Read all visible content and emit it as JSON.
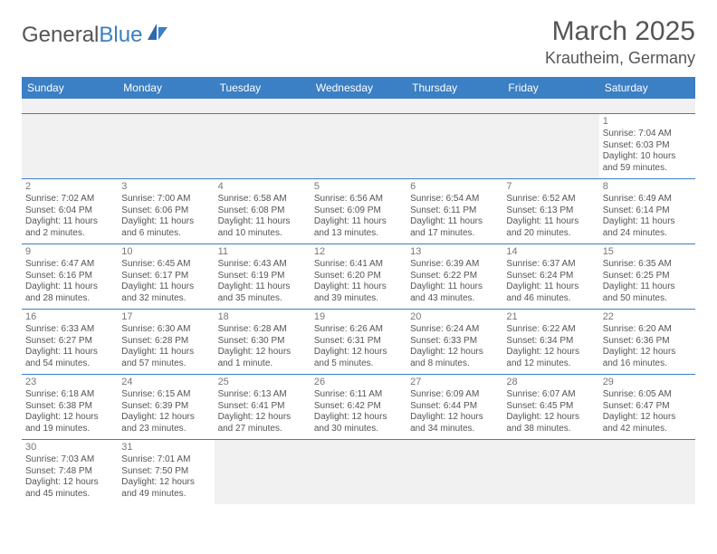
{
  "logo": {
    "text1": "General",
    "text2": "Blue"
  },
  "title": "March 2025",
  "location": "Krautheim, Germany",
  "colors": {
    "header_bg": "#3b7fc4",
    "header_text": "#ffffff",
    "row_border": "#3b7fc4",
    "blank_bg": "#f1f1f1",
    "body_text": "#555555"
  },
  "day_headers": [
    "Sunday",
    "Monday",
    "Tuesday",
    "Wednesday",
    "Thursday",
    "Friday",
    "Saturday"
  ],
  "weeks": [
    [
      null,
      null,
      null,
      null,
      null,
      null,
      {
        "n": "1",
        "sr": "Sunrise: 7:04 AM",
        "ss": "Sunset: 6:03 PM",
        "dl": "Daylight: 10 hours and 59 minutes."
      }
    ],
    [
      {
        "n": "2",
        "sr": "Sunrise: 7:02 AM",
        "ss": "Sunset: 6:04 PM",
        "dl": "Daylight: 11 hours and 2 minutes."
      },
      {
        "n": "3",
        "sr": "Sunrise: 7:00 AM",
        "ss": "Sunset: 6:06 PM",
        "dl": "Daylight: 11 hours and 6 minutes."
      },
      {
        "n": "4",
        "sr": "Sunrise: 6:58 AM",
        "ss": "Sunset: 6:08 PM",
        "dl": "Daylight: 11 hours and 10 minutes."
      },
      {
        "n": "5",
        "sr": "Sunrise: 6:56 AM",
        "ss": "Sunset: 6:09 PM",
        "dl": "Daylight: 11 hours and 13 minutes."
      },
      {
        "n": "6",
        "sr": "Sunrise: 6:54 AM",
        "ss": "Sunset: 6:11 PM",
        "dl": "Daylight: 11 hours and 17 minutes."
      },
      {
        "n": "7",
        "sr": "Sunrise: 6:52 AM",
        "ss": "Sunset: 6:13 PM",
        "dl": "Daylight: 11 hours and 20 minutes."
      },
      {
        "n": "8",
        "sr": "Sunrise: 6:49 AM",
        "ss": "Sunset: 6:14 PM",
        "dl": "Daylight: 11 hours and 24 minutes."
      }
    ],
    [
      {
        "n": "9",
        "sr": "Sunrise: 6:47 AM",
        "ss": "Sunset: 6:16 PM",
        "dl": "Daylight: 11 hours and 28 minutes."
      },
      {
        "n": "10",
        "sr": "Sunrise: 6:45 AM",
        "ss": "Sunset: 6:17 PM",
        "dl": "Daylight: 11 hours and 32 minutes."
      },
      {
        "n": "11",
        "sr": "Sunrise: 6:43 AM",
        "ss": "Sunset: 6:19 PM",
        "dl": "Daylight: 11 hours and 35 minutes."
      },
      {
        "n": "12",
        "sr": "Sunrise: 6:41 AM",
        "ss": "Sunset: 6:20 PM",
        "dl": "Daylight: 11 hours and 39 minutes."
      },
      {
        "n": "13",
        "sr": "Sunrise: 6:39 AM",
        "ss": "Sunset: 6:22 PM",
        "dl": "Daylight: 11 hours and 43 minutes."
      },
      {
        "n": "14",
        "sr": "Sunrise: 6:37 AM",
        "ss": "Sunset: 6:24 PM",
        "dl": "Daylight: 11 hours and 46 minutes."
      },
      {
        "n": "15",
        "sr": "Sunrise: 6:35 AM",
        "ss": "Sunset: 6:25 PM",
        "dl": "Daylight: 11 hours and 50 minutes."
      }
    ],
    [
      {
        "n": "16",
        "sr": "Sunrise: 6:33 AM",
        "ss": "Sunset: 6:27 PM",
        "dl": "Daylight: 11 hours and 54 minutes."
      },
      {
        "n": "17",
        "sr": "Sunrise: 6:30 AM",
        "ss": "Sunset: 6:28 PM",
        "dl": "Daylight: 11 hours and 57 minutes."
      },
      {
        "n": "18",
        "sr": "Sunrise: 6:28 AM",
        "ss": "Sunset: 6:30 PM",
        "dl": "Daylight: 12 hours and 1 minute."
      },
      {
        "n": "19",
        "sr": "Sunrise: 6:26 AM",
        "ss": "Sunset: 6:31 PM",
        "dl": "Daylight: 12 hours and 5 minutes."
      },
      {
        "n": "20",
        "sr": "Sunrise: 6:24 AM",
        "ss": "Sunset: 6:33 PM",
        "dl": "Daylight: 12 hours and 8 minutes."
      },
      {
        "n": "21",
        "sr": "Sunrise: 6:22 AM",
        "ss": "Sunset: 6:34 PM",
        "dl": "Daylight: 12 hours and 12 minutes."
      },
      {
        "n": "22",
        "sr": "Sunrise: 6:20 AM",
        "ss": "Sunset: 6:36 PM",
        "dl": "Daylight: 12 hours and 16 minutes."
      }
    ],
    [
      {
        "n": "23",
        "sr": "Sunrise: 6:18 AM",
        "ss": "Sunset: 6:38 PM",
        "dl": "Daylight: 12 hours and 19 minutes."
      },
      {
        "n": "24",
        "sr": "Sunrise: 6:15 AM",
        "ss": "Sunset: 6:39 PM",
        "dl": "Daylight: 12 hours and 23 minutes."
      },
      {
        "n": "25",
        "sr": "Sunrise: 6:13 AM",
        "ss": "Sunset: 6:41 PM",
        "dl": "Daylight: 12 hours and 27 minutes."
      },
      {
        "n": "26",
        "sr": "Sunrise: 6:11 AM",
        "ss": "Sunset: 6:42 PM",
        "dl": "Daylight: 12 hours and 30 minutes."
      },
      {
        "n": "27",
        "sr": "Sunrise: 6:09 AM",
        "ss": "Sunset: 6:44 PM",
        "dl": "Daylight: 12 hours and 34 minutes."
      },
      {
        "n": "28",
        "sr": "Sunrise: 6:07 AM",
        "ss": "Sunset: 6:45 PM",
        "dl": "Daylight: 12 hours and 38 minutes."
      },
      {
        "n": "29",
        "sr": "Sunrise: 6:05 AM",
        "ss": "Sunset: 6:47 PM",
        "dl": "Daylight: 12 hours and 42 minutes."
      }
    ],
    [
      {
        "n": "30",
        "sr": "Sunrise: 7:03 AM",
        "ss": "Sunset: 7:48 PM",
        "dl": "Daylight: 12 hours and 45 minutes."
      },
      {
        "n": "31",
        "sr": "Sunrise: 7:01 AM",
        "ss": "Sunset: 7:50 PM",
        "dl": "Daylight: 12 hours and 49 minutes."
      },
      null,
      null,
      null,
      null,
      null
    ]
  ]
}
